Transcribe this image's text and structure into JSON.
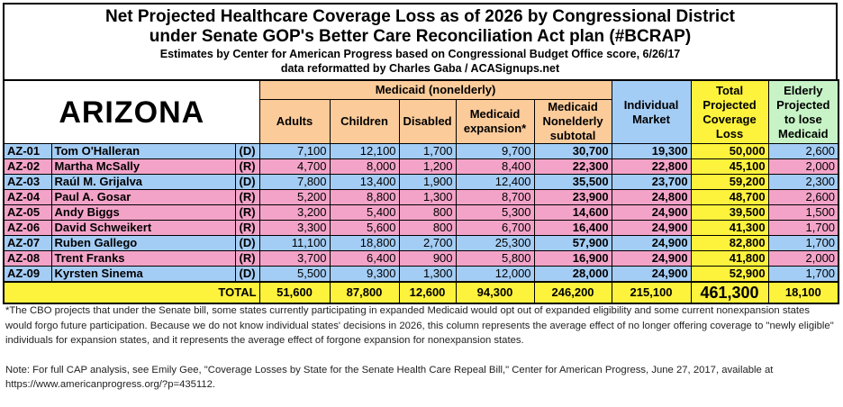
{
  "title": {
    "line1": "Net Projected Healthcare Coverage Loss as of 2026 by Congressional District",
    "line2": "under Senate GOP's Better Care Reconciliation Act plan (#BCRAP)",
    "line3": "Estimates by Center for American Progress based on Congressional Budget Office score, 6/26/17",
    "line4": "data reformatted by Charles Gaba / ACASignups.net"
  },
  "state": "ARIZONA",
  "headers": {
    "medicaid_group": "Medicaid (nonelderly)",
    "adults": "Adults",
    "children": "Children",
    "disabled": "Disabled",
    "expansion": "Medicaid expansion*",
    "subtotal": "Medicaid Nonelderly subtotal",
    "individual": "Individual Market",
    "total": "Total Projected Coverage Loss",
    "elderly": "Elderly Projected to lose Medicaid"
  },
  "colors": {
    "democrat": "#a4cdf5",
    "republican": "#f4a3c8",
    "medicaid_header": "#fbcb9a",
    "total": "#fdf23c",
    "elderly_header": "#c7f3c6"
  },
  "rows": [
    {
      "district": "AZ-01",
      "name": "Tom O'Halleran",
      "party": "(D)",
      "adults": "7,100",
      "children": "12,100",
      "disabled": "1,700",
      "expansion": "9,700",
      "subtotal": "30,700",
      "individual": "19,300",
      "total": "50,000",
      "elderly": "2,600"
    },
    {
      "district": "AZ-02",
      "name": "Martha McSally",
      "party": "(R)",
      "adults": "4,700",
      "children": "8,000",
      "disabled": "1,200",
      "expansion": "8,400",
      "subtotal": "22,300",
      "individual": "22,800",
      "total": "45,100",
      "elderly": "2,000"
    },
    {
      "district": "AZ-03",
      "name": "Raúl M. Grijalva",
      "party": "(D)",
      "adults": "7,800",
      "children": "13,400",
      "disabled": "1,900",
      "expansion": "12,400",
      "subtotal": "35,500",
      "individual": "23,700",
      "total": "59,200",
      "elderly": "2,300"
    },
    {
      "district": "AZ-04",
      "name": "Paul A. Gosar",
      "party": "(R)",
      "adults": "5,200",
      "children": "8,800",
      "disabled": "1,300",
      "expansion": "8,700",
      "subtotal": "23,900",
      "individual": "24,800",
      "total": "48,700",
      "elderly": "2,600"
    },
    {
      "district": "AZ-05",
      "name": "Andy Biggs",
      "party": "(R)",
      "adults": "3,200",
      "children": "5,400",
      "disabled": "800",
      "expansion": "5,300",
      "subtotal": "14,600",
      "individual": "24,900",
      "total": "39,500",
      "elderly": "1,500"
    },
    {
      "district": "AZ-06",
      "name": "David Schweikert",
      "party": "(R)",
      "adults": "3,300",
      "children": "5,600",
      "disabled": "800",
      "expansion": "6,700",
      "subtotal": "16,400",
      "individual": "24,900",
      "total": "41,300",
      "elderly": "1,700"
    },
    {
      "district": "AZ-07",
      "name": "Ruben Gallego",
      "party": "(D)",
      "adults": "11,100",
      "children": "18,800",
      "disabled": "2,700",
      "expansion": "25,300",
      "subtotal": "57,900",
      "individual": "24,900",
      "total": "82,800",
      "elderly": "1,700"
    },
    {
      "district": "AZ-08",
      "name": "Trent Franks",
      "party": "(R)",
      "adults": "3,700",
      "children": "6,400",
      "disabled": "900",
      "expansion": "5,800",
      "subtotal": "16,900",
      "individual": "24,900",
      "total": "41,800",
      "elderly": "2,000"
    },
    {
      "district": "AZ-09",
      "name": "Kyrsten Sinema",
      "party": "(D)",
      "adults": "5,500",
      "children": "9,300",
      "disabled": "1,300",
      "expansion": "12,000",
      "subtotal": "28,000",
      "individual": "24,900",
      "total": "52,900",
      "elderly": "1,700"
    }
  ],
  "totals": {
    "label": "TOTAL",
    "adults": "51,600",
    "children": "87,800",
    "disabled": "12,600",
    "expansion": "94,300",
    "subtotal": "246,200",
    "individual": "215,100",
    "total": "461,300",
    "elderly": "18,100"
  },
  "footnote": "*The CBO projects that under the Senate bill, some states currently participating in expanded Medicaid would opt out of expanded eligibility and some current nonexpansion states would forgo future participation. Because we do not know individual states' decisions in 2026, this column represents the average effect of no longer offering coverage to \"newly eligible\" individuals for expansion states, and it represents the average effect of forgone expansion for nonexpansion states.",
  "note": "Note: For full CAP analysis, see Emily Gee, \"Coverage Losses by State for the Senate Health Care Repeal Bill,\" Center for American Progress, June 27, 2017, available at https://www.americanprogress.org/?p=435112."
}
